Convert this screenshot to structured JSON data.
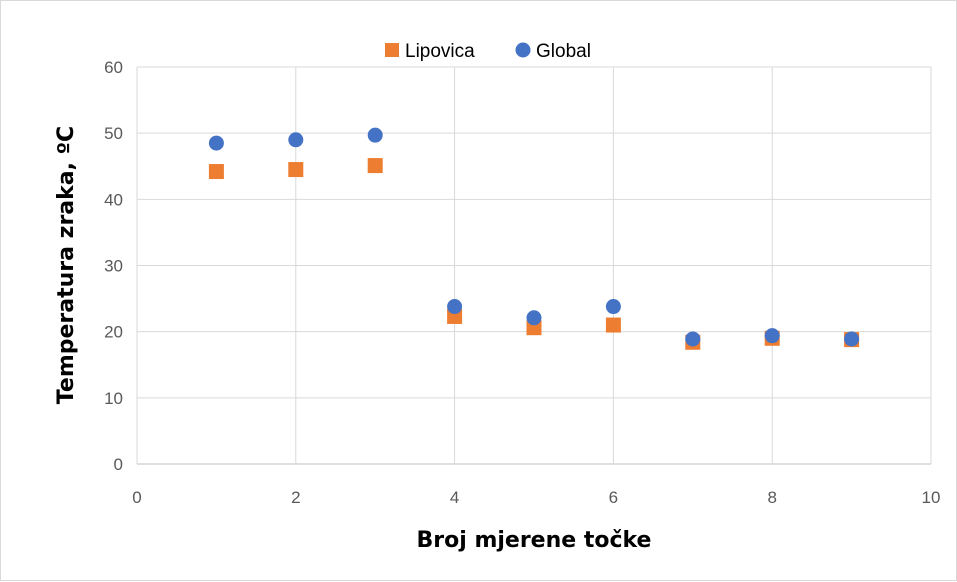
{
  "chart_data": {
    "type": "scatter",
    "xlabel": "Broj mjerene točke",
    "ylabel": "Temperatura zraka, ºC",
    "xlim": [
      0,
      10
    ],
    "ylim": [
      0,
      60
    ],
    "xticks": [
      "0",
      "2",
      "4",
      "6",
      "8",
      "10"
    ],
    "yticks": [
      "0",
      "10",
      "20",
      "30",
      "40",
      "50",
      "60"
    ],
    "grid": true,
    "legend_position": "top",
    "series": [
      {
        "name": "Lipovica",
        "marker": "square",
        "color": "#ED7D31",
        "points": [
          {
            "x": 1,
            "y": 44.2
          },
          {
            "x": 2,
            "y": 44.5
          },
          {
            "x": 3,
            "y": 45.1
          },
          {
            "x": 4,
            "y": 22.3
          },
          {
            "x": 5,
            "y": 20.6
          },
          {
            "x": 6,
            "y": 21.0
          },
          {
            "x": 7,
            "y": 18.4
          },
          {
            "x": 8,
            "y": 19.0
          },
          {
            "x": 9,
            "y": 18.8
          }
        ]
      },
      {
        "name": "Global",
        "marker": "circle",
        "color": "#4472C4",
        "points": [
          {
            "x": 1,
            "y": 48.5
          },
          {
            "x": 2,
            "y": 49.0
          },
          {
            "x": 3,
            "y": 49.7
          },
          {
            "x": 4,
            "y": 23.8
          },
          {
            "x": 5,
            "y": 22.1
          },
          {
            "x": 6,
            "y": 23.8
          },
          {
            "x": 7,
            "y": 18.9
          },
          {
            "x": 8,
            "y": 19.4
          },
          {
            "x": 9,
            "y": 18.9
          }
        ]
      }
    ]
  }
}
